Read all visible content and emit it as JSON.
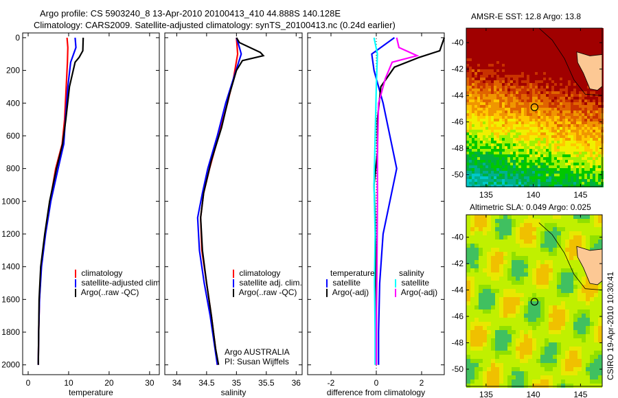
{
  "title_line1": "Argo profile: CS 5903240_8 13-Apr-2010 20100413_410 44.888S 140.128E",
  "title_line2": "Climatology: CARS2009. Satellite-adjusted climatology: synTS_20100413.nc (0.24d earlier)",
  "side_label": "CSIRO 19-Apr-2010 10:30:41",
  "colors": {
    "climatology": "#ff0000",
    "satellite": "#0000ff",
    "argo": "#000000",
    "sal_satellite": "#00ffff",
    "sal_argo": "#ff00ff"
  },
  "chart_data": [
    {
      "type": "line",
      "id": "temp",
      "xlabel": "temperature",
      "ylabel": "",
      "xlim": [
        -1.36,
        32.4
      ],
      "ylim": [
        2060,
        -29
      ],
      "xticks": [
        0,
        10,
        20,
        30
      ],
      "yticks": [
        0,
        200,
        400,
        600,
        800,
        1000,
        1200,
        1400,
        1600,
        1800,
        2000
      ],
      "legend": [
        "climatology",
        "satellite-adjusted climatology",
        "Argo(..raw -QC)"
      ],
      "series": [
        {
          "name": "climatology",
          "color": "#ff0000",
          "points": [
            [
              9.6,
              0
            ],
            [
              9.8,
              60
            ],
            [
              9.7,
              150
            ],
            [
              9.4,
              300
            ],
            [
              9.0,
              500
            ],
            [
              8.4,
              650
            ],
            [
              6.8,
              800
            ],
            [
              5.4,
              1000
            ],
            [
              4.2,
              1200
            ],
            [
              3.2,
              1400
            ],
            [
              2.8,
              1600
            ],
            [
              2.6,
              1800
            ],
            [
              2.5,
              2000
            ]
          ]
        },
        {
          "name": "satellite",
          "color": "#0000ff",
          "points": [
            [
              11.6,
              0
            ],
            [
              11.8,
              60
            ],
            [
              10.5,
              150
            ],
            [
              9.8,
              300
            ],
            [
              9.2,
              500
            ],
            [
              8.8,
              650
            ],
            [
              7.4,
              800
            ],
            [
              5.6,
              1000
            ],
            [
              4.3,
              1200
            ],
            [
              3.3,
              1400
            ],
            [
              2.8,
              1600
            ],
            [
              2.6,
              1800
            ],
            [
              2.5,
              2000
            ]
          ]
        },
        {
          "name": "Argo",
          "color": "#000000",
          "points": [
            [
              13.6,
              0
            ],
            [
              13.5,
              80
            ],
            [
              12.6,
              120
            ],
            [
              11.6,
              150
            ],
            [
              10.2,
              300
            ],
            [
              9.3,
              500
            ],
            [
              8.5,
              650
            ],
            [
              7.0,
              800
            ],
            [
              5.3,
              1000
            ],
            [
              4.1,
              1200
            ],
            [
              3.1,
              1400
            ],
            [
              2.7,
              1600
            ],
            [
              2.6,
              1800
            ],
            [
              2.5,
              2000
            ]
          ]
        }
      ]
    },
    {
      "type": "line",
      "id": "sal",
      "xlabel": "salinity",
      "xlim": [
        33.8,
        36.1
      ],
      "ylim": [
        2060,
        -29
      ],
      "xticks": [
        34,
        34.5,
        35,
        35.5,
        36
      ],
      "tick_labels": [
        "34",
        "34.5",
        "35",
        "35.5",
        "36"
      ],
      "legend": [
        "climatology",
        "satellite adj. clim.",
        "Argo(..raw -QC)"
      ],
      "annotation": [
        "Argo AUSTRALIA",
        "PI: Susan Wijffels"
      ],
      "series": [
        {
          "name": "climatology",
          "color": "#ff0000",
          "points": [
            [
              35.0,
              0
            ],
            [
              35.02,
              100
            ],
            [
              34.95,
              250
            ],
            [
              34.85,
              400
            ],
            [
              34.7,
              600
            ],
            [
              34.55,
              800
            ],
            [
              34.45,
              950
            ],
            [
              34.4,
              1100
            ],
            [
              34.42,
              1300
            ],
            [
              34.5,
              1500
            ],
            [
              34.58,
              1700
            ],
            [
              34.65,
              1900
            ],
            [
              34.68,
              2000
            ]
          ]
        },
        {
          "name": "satellite",
          "color": "#0000ff",
          "points": [
            [
              35.0,
              0
            ],
            [
              35.05,
              60
            ],
            [
              35.08,
              100
            ],
            [
              34.95,
              250
            ],
            [
              34.82,
              400
            ],
            [
              34.68,
              600
            ],
            [
              34.52,
              800
            ],
            [
              34.43,
              950
            ],
            [
              34.35,
              1100
            ],
            [
              34.38,
              1300
            ],
            [
              34.46,
              1500
            ],
            [
              34.56,
              1700
            ],
            [
              34.64,
              1900
            ],
            [
              34.68,
              2000
            ]
          ]
        },
        {
          "name": "Argo",
          "color": "#000000",
          "points": [
            [
              35.0,
              0
            ],
            [
              35.05,
              30
            ],
            [
              35.4,
              90
            ],
            [
              35.45,
              110
            ],
            [
              35.1,
              140
            ],
            [
              35.0,
              200
            ],
            [
              34.88,
              350
            ],
            [
              34.75,
              550
            ],
            [
              34.58,
              750
            ],
            [
              34.45,
              950
            ],
            [
              34.4,
              1100
            ],
            [
              34.43,
              1300
            ],
            [
              34.5,
              1500
            ],
            [
              34.58,
              1700
            ],
            [
              34.65,
              1900
            ],
            [
              34.7,
              2000
            ]
          ]
        }
      ]
    },
    {
      "type": "line",
      "id": "diff",
      "xlabel": "difference from climatology",
      "xlim": [
        -3.03,
        3.0
      ],
      "ylim": [
        2060,
        -29
      ],
      "xticks": [
        -2,
        0,
        2
      ],
      "tick_labels": [
        "-2",
        "0",
        "2"
      ],
      "legend_headers": [
        "temperature",
        "salinity"
      ],
      "legend": [
        "satellite",
        "Argo(-adj)",
        "satellite",
        "Argo(-adj)"
      ],
      "series": [
        {
          "name": "temperature satellite",
          "color": "#0000ff",
          "points": [
            [
              0.8,
              0
            ],
            [
              -0.2,
              100
            ],
            [
              -0.1,
              200
            ],
            [
              0.3,
              400
            ],
            [
              0.6,
              600
            ],
            [
              0.9,
              800
            ],
            [
              0.6,
              1000
            ],
            [
              0.3,
              1200
            ],
            [
              0.15,
              1500
            ],
            [
              0.1,
              1800
            ],
            [
              0.1,
              2000
            ]
          ]
        },
        {
          "name": "temperature Argo",
          "color": "#000000",
          "points": [
            [
              3.0,
              0
            ],
            [
              2.8,
              80
            ],
            [
              1.9,
              120
            ],
            [
              0.8,
              180
            ],
            [
              0.2,
              300
            ],
            [
              0.05,
              500
            ],
            [
              0.05,
              700
            ],
            [
              -0.1,
              900
            ],
            [
              -0.05,
              1100
            ],
            [
              -0.02,
              1400
            ],
            [
              0.0,
              1700
            ],
            [
              0.0,
              2000
            ]
          ]
        },
        {
          "name": "salinity satellite",
          "color": "#00ffff",
          "points": [
            [
              -0.1,
              0
            ],
            [
              0.05,
              100
            ],
            [
              0.0,
              300
            ],
            [
              -0.05,
              600
            ],
            [
              -0.1,
              900
            ],
            [
              -0.05,
              1200
            ],
            [
              -0.08,
              1500
            ],
            [
              -0.05,
              1800
            ],
            [
              -0.05,
              2000
            ]
          ]
        },
        {
          "name": "salinity Argo",
          "color": "#ff00ff",
          "points": [
            [
              0.9,
              0
            ],
            [
              1.0,
              60
            ],
            [
              1.8,
              110
            ],
            [
              0.7,
              150
            ],
            [
              0.4,
              250
            ],
            [
              0.1,
              400
            ],
            [
              0.05,
              700
            ],
            [
              0.05,
              1000
            ],
            [
              0.03,
              1400
            ],
            [
              0.0,
              1800
            ],
            [
              0.0,
              2000
            ]
          ]
        }
      ]
    },
    {
      "type": "heatmap",
      "id": "sst",
      "title": "AMSR-E SST: 12.8 Argo: 13.8",
      "xlim": [
        132.9,
        147.3
      ],
      "ylim": [
        -50.9,
        -38.9
      ],
      "xticks": [
        135,
        140,
        145
      ],
      "yticks": [
        -40,
        -42,
        -44,
        -46,
        -48,
        -50
      ],
      "marker": [
        140.128,
        -44.888
      ]
    },
    {
      "type": "heatmap",
      "id": "sla",
      "title": "Altimetric SLA: 0.049 Argo: 0.025",
      "xlim": [
        132.9,
        147.3
      ],
      "ylim": [
        -51.3,
        -38.3
      ],
      "xticks": [
        135,
        140,
        145
      ],
      "yticks": [
        -40,
        -42,
        -44,
        -46,
        -48,
        -50
      ],
      "marker": [
        140.128,
        -44.888
      ]
    }
  ]
}
